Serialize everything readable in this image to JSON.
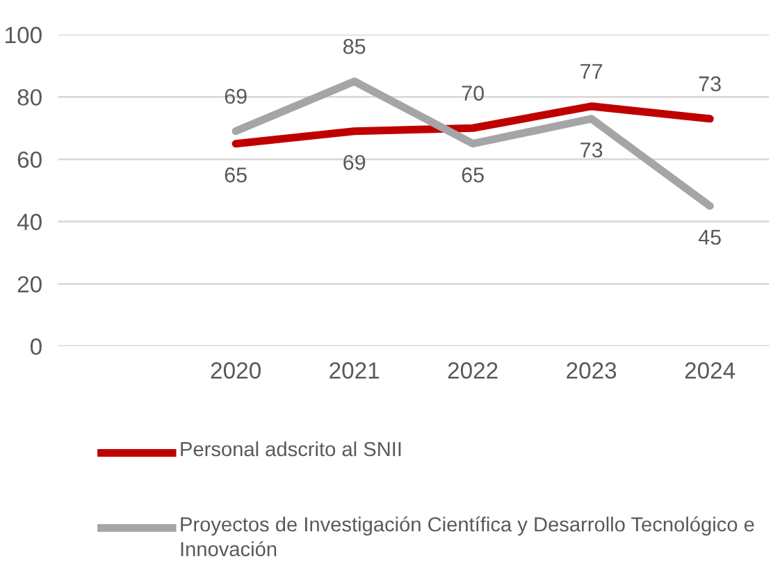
{
  "chart_data": {
    "type": "line",
    "categories": [
      null,
      "2020",
      "2021",
      "2022",
      "2023",
      "2024"
    ],
    "series": [
      {
        "name": "Personal adscrito al SNII",
        "color": "#c00000",
        "values": [
          null,
          65,
          69,
          70,
          77,
          73
        ]
      },
      {
        "name": "Proyectos de Investigación Científica y Desarrollo Tecnológico e Innovación",
        "color": "#a5a5a5",
        "values": [
          null,
          69,
          85,
          65,
          73,
          45
        ]
      }
    ],
    "ylim": [
      0,
      100
    ],
    "yticks": [
      0,
      20,
      40,
      60,
      80,
      100
    ],
    "grid": "y",
    "legend": "bottom",
    "data_labels": true,
    "marker": "none",
    "line_style": "solid"
  }
}
